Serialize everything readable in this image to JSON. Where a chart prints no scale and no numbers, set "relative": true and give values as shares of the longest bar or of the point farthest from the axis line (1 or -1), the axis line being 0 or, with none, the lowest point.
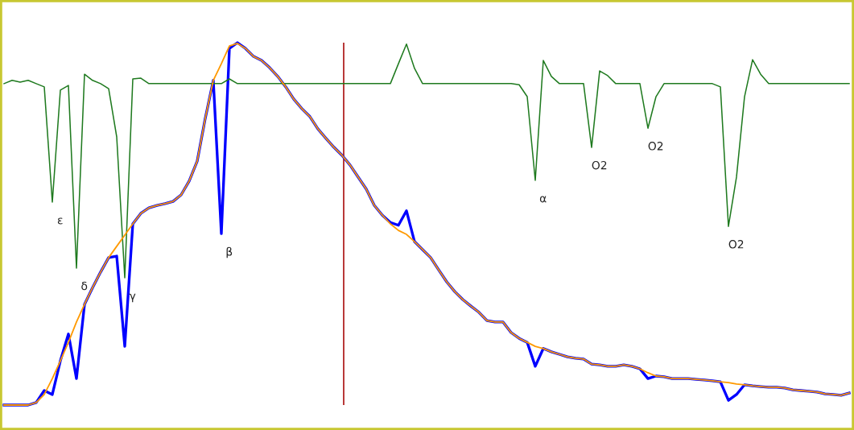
{
  "chart_data": {
    "type": "line",
    "relative": true,
    "categories": [
      null,
      null,
      null,
      null,
      null,
      null,
      null,
      null,
      null,
      null,
      null,
      null,
      null,
      null,
      null,
      null,
      null,
      null,
      null,
      null,
      null,
      null,
      null,
      null,
      null,
      null,
      null,
      null,
      null,
      null,
      null,
      null,
      null,
      null,
      null,
      null,
      null,
      null,
      null,
      null,
      null,
      null,
      null,
      null,
      null,
      null,
      null,
      null,
      null,
      null,
      null,
      null,
      null,
      null,
      null,
      null,
      null,
      null,
      null,
      null,
      null,
      null,
      null,
      null,
      null,
      null,
      null,
      null,
      null,
      null,
      null,
      null,
      null,
      null,
      null,
      null,
      null,
      null,
      null,
      null,
      null,
      null,
      null,
      null,
      null,
      null,
      null,
      null,
      null,
      null,
      null,
      null,
      null,
      null,
      null,
      null,
      null,
      null,
      null,
      null,
      null,
      null,
      null,
      null,
      null,
      null
    ],
    "series": [
      {
        "color": "#0000ff",
        "values": [
          0,
          0,
          0,
          0,
          0.007,
          0.04,
          0.029,
          0.122,
          0.196,
          0.073,
          0.278,
          0.324,
          0.367,
          0.407,
          0.411,
          0.162,
          0.5,
          0.529,
          0.544,
          0.551,
          0.556,
          0.562,
          0.58,
          0.618,
          0.673,
          0.791,
          0.896,
          0.473,
          0.984,
          1,
          0.984,
          0.962,
          0.951,
          0.931,
          0.907,
          0.878,
          0.844,
          0.818,
          0.796,
          0.762,
          0.736,
          0.711,
          0.689,
          0.662,
          0.629,
          0.596,
          0.551,
          0.524,
          0.504,
          0.496,
          0.536,
          0.451,
          0.429,
          0.407,
          0.373,
          0.34,
          0.313,
          0.291,
          0.273,
          0.256,
          0.233,
          0.229,
          0.229,
          0.2,
          0.184,
          0.173,
          0.107,
          0.156,
          0.147,
          0.14,
          0.133,
          0.129,
          0.127,
          0.113,
          0.111,
          0.107,
          0.107,
          0.111,
          0.107,
          0.1,
          0.073,
          0.08,
          0.078,
          0.073,
          0.073,
          0.073,
          0.071,
          0.069,
          0.067,
          0.064,
          0.013,
          0.029,
          0.056,
          0.053,
          0.051,
          0.049,
          0.049,
          0.047,
          0.042,
          0.04,
          0.038,
          0.036,
          0.031,
          0.029,
          0.027,
          0.033
        ]
      },
      {
        "color": "#ff9900",
        "values": [
          0,
          0,
          0,
          0,
          0.007,
          0.029,
          0.073,
          0.122,
          0.173,
          0.229,
          0.278,
          0.324,
          0.367,
          0.407,
          0.438,
          0.469,
          0.5,
          0.529,
          0.544,
          0.551,
          0.556,
          0.562,
          0.58,
          0.618,
          0.673,
          0.791,
          0.896,
          0.942,
          0.991,
          0.998,
          0.984,
          0.962,
          0.951,
          0.931,
          0.907,
          0.878,
          0.844,
          0.818,
          0.796,
          0.762,
          0.736,
          0.711,
          0.689,
          0.662,
          0.629,
          0.596,
          0.551,
          0.524,
          0.5,
          0.482,
          0.471,
          0.451,
          0.429,
          0.407,
          0.373,
          0.34,
          0.313,
          0.291,
          0.273,
          0.256,
          0.233,
          0.229,
          0.229,
          0.2,
          0.184,
          0.173,
          0.162,
          0.156,
          0.147,
          0.14,
          0.133,
          0.129,
          0.127,
          0.113,
          0.111,
          0.107,
          0.107,
          0.111,
          0.107,
          0.1,
          0.089,
          0.08,
          0.078,
          0.073,
          0.073,
          0.073,
          0.071,
          0.069,
          0.067,
          0.064,
          0.062,
          0.058,
          0.056,
          0.053,
          0.051,
          0.049,
          0.049,
          0.047,
          0.042,
          0.04,
          0.038,
          0.036,
          0.031,
          0.029,
          0.027,
          0.033
        ]
      },
      {
        "color": "#1f7a1f",
        "values": [
          0.887,
          0.896,
          0.891,
          0.896,
          0.887,
          0.878,
          0.56,
          0.869,
          0.882,
          0.378,
          0.913,
          0.896,
          0.887,
          0.873,
          0.74,
          0.351,
          0.9,
          0.902,
          0.887,
          0.887,
          0.887,
          0.887,
          0.887,
          0.887,
          0.887,
          0.887,
          0.887,
          0.887,
          0.9,
          0.887,
          0.887,
          0.887,
          0.887,
          0.887,
          0.887,
          0.887,
          0.887,
          0.887,
          0.887,
          0.887,
          0.887,
          0.887,
          0.887,
          0.887,
          0.887,
          0.887,
          0.887,
          0.887,
          0.887,
          0.942,
          0.996,
          0.929,
          0.887,
          0.887,
          0.887,
          0.887,
          0.887,
          0.887,
          0.887,
          0.887,
          0.887,
          0.887,
          0.887,
          0.887,
          0.884,
          0.851,
          0.62,
          0.951,
          0.907,
          0.887,
          0.887,
          0.887,
          0.887,
          0.711,
          0.922,
          0.909,
          0.887,
          0.887,
          0.887,
          0.887,
          0.764,
          0.851,
          0.887,
          0.887,
          0.887,
          0.887,
          0.887,
          0.887,
          0.887,
          0.878,
          0.493,
          0.629,
          0.851,
          0.953,
          0.913,
          0.887,
          0.887,
          0.887,
          0.887,
          0.887,
          0.887,
          0.887,
          0.887,
          0.887,
          0.887,
          0.887
        ]
      }
    ],
    "annotations": [
      "ε",
      "δ",
      "γ",
      "β",
      "α",
      "O2",
      "O2",
      "O2"
    ]
  }
}
